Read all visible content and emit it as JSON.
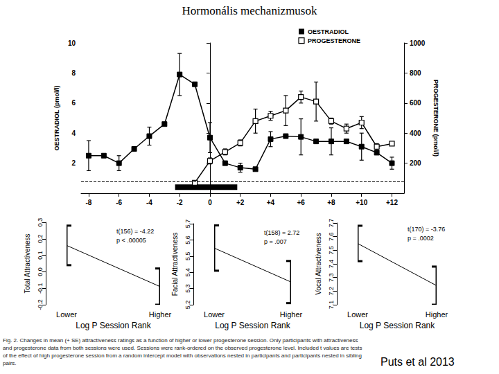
{
  "title": "Hormonális mechanizmusok",
  "caption": "Fig. 2. Changes in mean (+ SE) attractiveness ratings as a function of higher or lower progesterone session. Only participants with attractiveness and progesterone data from both sessions were used. Sessions were rank-ordered on the observed progesterone level. Included t values are tests of the effect of high progesterone session from a random intercept model with observations nested in participants and participants nested in sibling pairs.",
  "credit": "Puts et al 2013",
  "chart_data": [
    {
      "type": "line",
      "x": [
        -8,
        -7,
        -6,
        -5,
        -4,
        -3,
        -2,
        -1,
        0,
        1,
        2,
        3,
        4,
        5,
        6,
        7,
        8,
        9,
        10,
        11,
        12
      ],
      "xlim": [
        -8.5,
        12.8
      ],
      "xticks": [
        -8,
        -6,
        -4,
        -2,
        0,
        {
          "value": 2,
          "label": "+2"
        },
        {
          "value": 4,
          "label": "+4"
        },
        {
          "value": 6,
          "label": "+6"
        },
        {
          "value": 8,
          "label": "+8"
        },
        {
          "value": 10,
          "label": "+10"
        },
        {
          "value": 12,
          "label": "+12"
        }
      ],
      "y_label": "OESTRADIOL (pmol/l)",
      "ylim": [
        0,
        10
      ],
      "yticks": [
        2,
        4,
        6,
        8,
        10
      ],
      "y2_label": "PROGESTERONE (pmol/l)",
      "y2lim": [
        0,
        1000
      ],
      "y2ticks": [
        200,
        400,
        600,
        800,
        1000
      ],
      "grid": false,
      "legend": "top-right",
      "series": [
        {
          "name": "OESTRADIOL",
          "color": "#000000",
          "marker": "square",
          "values": [
            2.5,
            2.5,
            2.0,
            2.95,
            3.8,
            4.6,
            7.9,
            7.25,
            3.7,
            2.0,
            1.7,
            1.6,
            3.6,
            3.8,
            3.75,
            3.45,
            3.45,
            3.45,
            3.1,
            2.7,
            2.0
          ],
          "errors": [
            1.0,
            null,
            0.5,
            null,
            0.6,
            null,
            1.4,
            null,
            1.0,
            null,
            0.3,
            null,
            0.5,
            null,
            1.2,
            null,
            0.9,
            null,
            0.9,
            null,
            0.4
          ]
        },
        {
          "name": "PROGESTERONE",
          "color": "#000000",
          "marker": "open_square",
          "axis": "y2",
          "values": [
            null,
            null,
            null,
            null,
            null,
            null,
            null,
            70,
            215,
            275,
            335,
            480,
            515,
            550,
            640,
            610,
            480,
            430,
            470,
            310,
            330
          ],
          "errors": [
            null,
            null,
            null,
            null,
            null,
            null,
            null,
            null,
            20,
            20,
            20,
            80,
            30,
            100,
            40,
            130,
            20,
            30,
            40,
            20,
            10
          ]
        }
      ],
      "reference_line": {
        "y": 0.75,
        "line_style": "dashed"
      },
      "bar_period": {
        "x": [
          -2.3,
          1.8
        ],
        "y": 0.4
      }
    },
    {
      "type": "line",
      "color": "#000000",
      "y_label": "Total Attractiveness",
      "x_label": "Log P Session Rank",
      "categories": [
        "Lower",
        "Higher"
      ],
      "values": [
        0.16,
        -0.09
      ],
      "errors": [
        0.12,
        0.11
      ],
      "ylim": [
        -0.2,
        0.3
      ],
      "yticks": [
        -0.2,
        -0.1,
        {
          "value": 0,
          "label": "0.0"
        },
        0.1,
        0.2,
        0.3
      ],
      "annotation": [
        "t(156) = -4.22",
        "p < .00005"
      ]
    },
    {
      "type": "line",
      "color": "#000000",
      "y_label": "Facial Attractiveness",
      "x_label": "Log P Session Rank",
      "categories": [
        "Lower",
        "Higher"
      ],
      "values": [
        5.55,
        5.34
      ],
      "errors": [
        0.14,
        0.13
      ],
      "ylim": [
        5.2,
        5.7
      ],
      "yticks": [
        5.2,
        5.3,
        5.4,
        5.5,
        5.6,
        5.7
      ],
      "annotation": [
        "t(158) = 2.72",
        "p = .007"
      ]
    },
    {
      "type": "line",
      "color": "#000000",
      "y_label": "Vocal Attractiveness",
      "x_label": "Log P Session Rank",
      "categories": [
        "Lower",
        "Higher"
      ],
      "values": [
        7.55,
        7.24
      ],
      "errors": [
        0.13,
        0.14
      ],
      "ylim": [
        7.1,
        7.7
      ],
      "yticks": [
        7.1,
        7.2,
        7.3,
        7.4,
        7.5,
        7.6,
        7.7
      ],
      "annotation": [
        "t(170) = -3.76",
        "p = .0002"
      ]
    }
  ]
}
